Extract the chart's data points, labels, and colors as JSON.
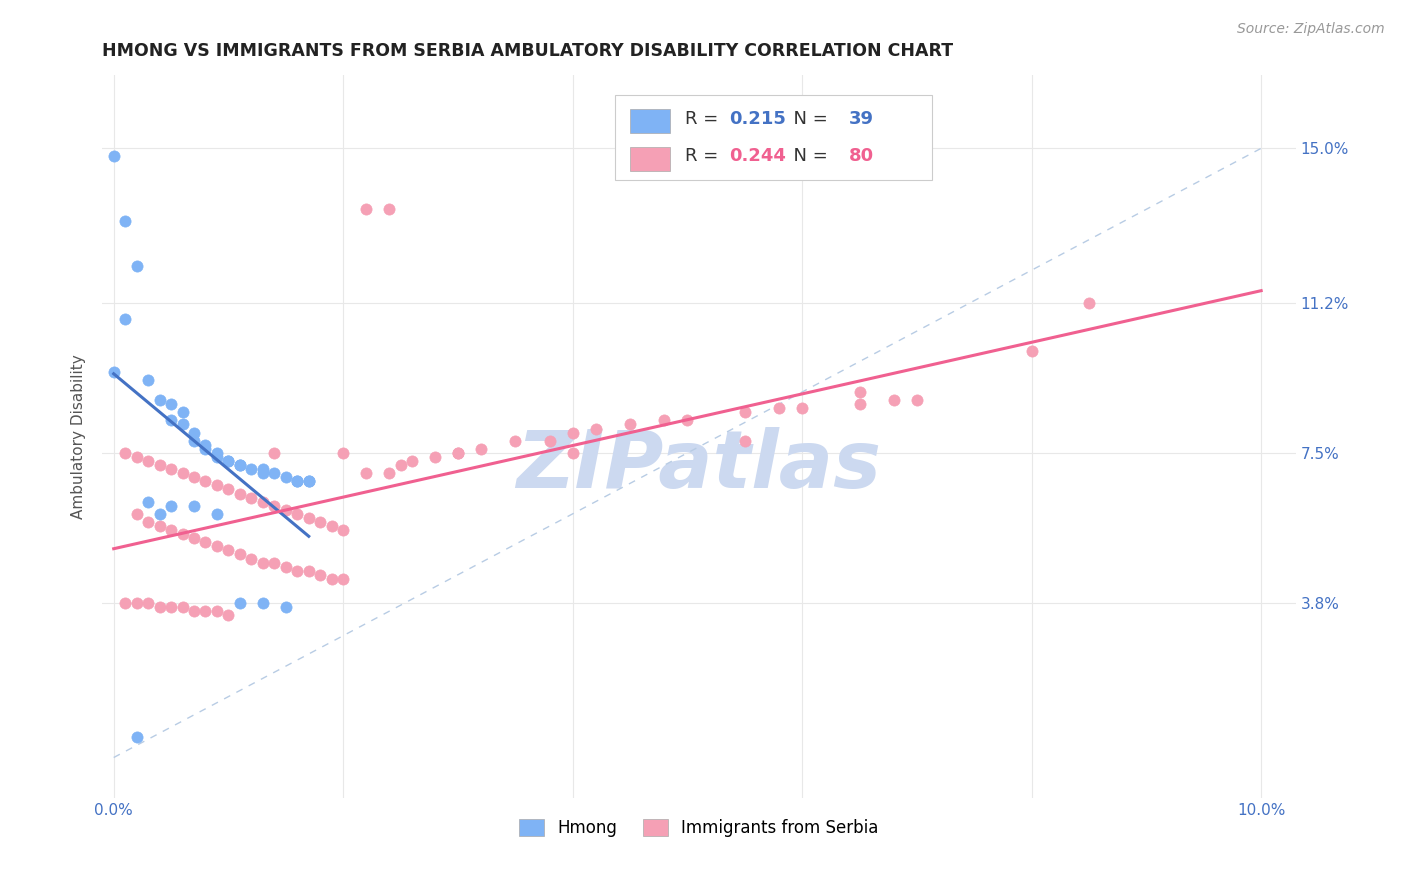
{
  "title": "HMONG VS IMMIGRANTS FROM SERBIA AMBULATORY DISABILITY CORRELATION CHART",
  "source": "Source: ZipAtlas.com",
  "ylabel": "Ambulatory Disability",
  "ytick_labels": [
    "3.8%",
    "7.5%",
    "11.2%",
    "15.0%"
  ],
  "ytick_values": [
    0.038,
    0.075,
    0.112,
    0.15
  ],
  "hmong_R": 0.215,
  "hmong_N": 39,
  "serbia_R": 0.244,
  "serbia_N": 80,
  "hmong_color": "#7fb3f5",
  "serbia_color": "#f5a0b5",
  "hmong_line_color": "#4472c4",
  "serbia_line_color": "#f06090",
  "diagonal_color": "#b8cce4",
  "watermark": "ZIPatlas",
  "watermark_color": "#ccd9f0",
  "hmong_x": [
    0.0,
    0.001,
    0.002,
    0.001,
    0.002,
    0.003,
    0.003,
    0.003,
    0.004,
    0.004,
    0.005,
    0.005,
    0.005,
    0.006,
    0.006,
    0.007,
    0.007,
    0.008,
    0.008,
    0.009,
    0.009,
    0.01,
    0.01,
    0.011,
    0.012,
    0.013,
    0.014,
    0.015,
    0.016,
    0.017,
    0.0,
    0.001,
    0.002,
    0.003,
    0.004,
    0.005,
    0.007,
    0.009,
    0.012
  ],
  "hmong_y": [
    0.148,
    0.132,
    0.121,
    0.108,
    0.095,
    0.093,
    0.088,
    0.075,
    0.087,
    0.083,
    0.082,
    0.08,
    0.079,
    0.078,
    0.077,
    0.076,
    0.063,
    0.075,
    0.07,
    0.074,
    0.073,
    0.072,
    0.068,
    0.072,
    0.071,
    0.068,
    0.038,
    0.038,
    0.038,
    0.037,
    0.055,
    0.063,
    0.015,
    0.02,
    0.06,
    0.005,
    0.062,
    0.06,
    0.062
  ],
  "serbia_x": [
    0.022,
    0.024,
    0.001,
    0.002,
    0.003,
    0.004,
    0.005,
    0.006,
    0.007,
    0.008,
    0.009,
    0.01,
    0.011,
    0.012,
    0.013,
    0.014,
    0.015,
    0.016,
    0.017,
    0.018,
    0.019,
    0.02,
    0.021,
    0.022,
    0.023,
    0.024,
    0.025,
    0.026,
    0.027,
    0.028,
    0.003,
    0.005,
    0.007,
    0.009,
    0.011,
    0.013,
    0.015,
    0.017,
    0.019,
    0.021,
    0.004,
    0.006,
    0.008,
    0.01,
    0.012,
    0.014,
    0.016,
    0.018,
    0.02,
    0.022,
    0.002,
    0.004,
    0.006,
    0.008,
    0.01,
    0.012,
    0.015,
    0.018,
    0.022,
    0.025,
    0.03,
    0.035,
    0.04,
    0.045,
    0.05,
    0.055,
    0.06,
    0.065,
    0.07,
    0.075,
    0.025,
    0.03,
    0.035,
    0.04,
    0.045,
    0.038,
    0.085,
    0.08,
    0.06,
    0.05
  ],
  "serbia_y": [
    0.135,
    0.135,
    0.088,
    0.085,
    0.083,
    0.082,
    0.081,
    0.079,
    0.079,
    0.078,
    0.077,
    0.076,
    0.076,
    0.075,
    0.075,
    0.074,
    0.073,
    0.073,
    0.072,
    0.071,
    0.071,
    0.07,
    0.07,
    0.07,
    0.069,
    0.069,
    0.069,
    0.068,
    0.067,
    0.067,
    0.06,
    0.06,
    0.059,
    0.059,
    0.058,
    0.058,
    0.057,
    0.057,
    0.056,
    0.056,
    0.038,
    0.038,
    0.037,
    0.037,
    0.036,
    0.036,
    0.036,
    0.035,
    0.035,
    0.034,
    0.055,
    0.053,
    0.051,
    0.05,
    0.049,
    0.048,
    0.046,
    0.044,
    0.042,
    0.04,
    0.075,
    0.078,
    0.08,
    0.082,
    0.083,
    0.084,
    0.085,
    0.086,
    0.087,
    0.088,
    0.075,
    0.076,
    0.075,
    0.078,
    0.079,
    0.038,
    0.112,
    0.1,
    0.09,
    0.075
  ]
}
